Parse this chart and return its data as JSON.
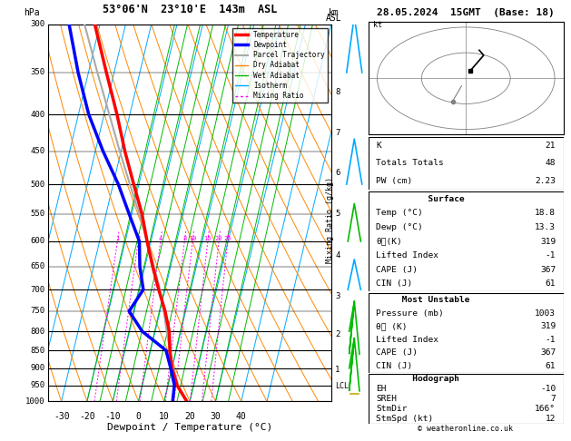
{
  "title_left": "53°06'N  23°10'E  143m  ASL",
  "title_right": "28.05.2024  15GMT  (Base: 18)",
  "xlabel": "Dewpoint / Temperature (°C)",
  "ylabel_left": "hPa",
  "bg_color": "#ffffff",
  "legend_labels": [
    "Temperature",
    "Dewpoint",
    "Parcel Trajectory",
    "Dry Adiabat",
    "Wet Adiabat",
    "Isotherm",
    "Mixing Ratio"
  ],
  "legend_colors": [
    "#ff0000",
    "#0000ff",
    "#aaaaaa",
    "#ff8800",
    "#00bb00",
    "#00aaff",
    "#ff00ff"
  ],
  "legend_widths": [
    2.5,
    2.5,
    1.5,
    1.0,
    1.0,
    1.0,
    1.0
  ],
  "isotherm_color": "#00aaff",
  "dry_adiabat_color": "#ff8800",
  "wet_adiabat_color": "#00bb00",
  "mixing_ratio_color": "#ff00ff",
  "temp_color": "#ff0000",
  "dew_color": "#0000ff",
  "parcel_color": "#aaaaaa",
  "km_ticks": [
    1,
    2,
    3,
    4,
    5,
    6,
    7,
    8
  ],
  "km_pressures": [
    905,
    808,
    715,
    628,
    550,
    482,
    424,
    373
  ],
  "mixing_ratio_values": [
    1,
    2,
    4,
    8,
    10,
    15,
    20,
    25
  ],
  "stats_K": 21,
  "stats_TT": 48,
  "stats_PW": "2.23",
  "surf_temp": "18.8",
  "surf_dewp": "13.3",
  "surf_theta_e": 319,
  "surf_li": -1,
  "surf_cape": 367,
  "surf_cin": 61,
  "mu_pressure": 1003,
  "mu_theta_e": 319,
  "mu_li": -1,
  "mu_cape": 367,
  "mu_cin": 61,
  "hodo_eh": -10,
  "hodo_sreh": 7,
  "hodo_stmdir": 166,
  "hodo_stmspd": 12,
  "lcl_pressure": 953,
  "temp_data": [
    [
      1000,
      18.8
    ],
    [
      950,
      13.5
    ],
    [
      900,
      10.0
    ],
    [
      850,
      7.5
    ],
    [
      800,
      5.5
    ],
    [
      750,
      2.0
    ],
    [
      700,
      -2.5
    ],
    [
      650,
      -7.0
    ],
    [
      600,
      -11.5
    ],
    [
      550,
      -16.0
    ],
    [
      500,
      -22.0
    ],
    [
      450,
      -28.5
    ],
    [
      400,
      -35.0
    ],
    [
      350,
      -43.0
    ],
    [
      300,
      -52.0
    ]
  ],
  "dew_data": [
    [
      1000,
      13.3
    ],
    [
      950,
      12.5
    ],
    [
      900,
      9.5
    ],
    [
      850,
      6.0
    ],
    [
      800,
      -5.0
    ],
    [
      750,
      -12.0
    ],
    [
      700,
      -8.5
    ],
    [
      650,
      -12.0
    ],
    [
      600,
      -14.5
    ],
    [
      550,
      -21.0
    ],
    [
      500,
      -28.0
    ],
    [
      450,
      -37.0
    ],
    [
      400,
      -46.0
    ],
    [
      350,
      -54.0
    ],
    [
      300,
      -62.0
    ]
  ],
  "parcel_data": [
    [
      1000,
      18.8
    ],
    [
      950,
      14.0
    ],
    [
      900,
      10.5
    ],
    [
      850,
      7.5
    ],
    [
      800,
      4.5
    ],
    [
      750,
      1.5
    ],
    [
      700,
      -2.0
    ],
    [
      650,
      -6.5
    ],
    [
      600,
      -11.5
    ],
    [
      550,
      -17.0
    ],
    [
      500,
      -23.5
    ],
    [
      450,
      -30.5
    ],
    [
      400,
      -38.0
    ],
    [
      350,
      -46.5
    ],
    [
      300,
      -56.0
    ]
  ]
}
